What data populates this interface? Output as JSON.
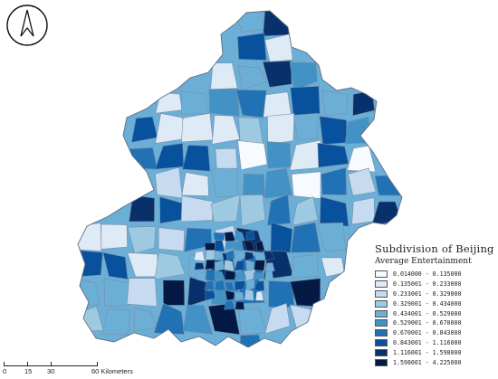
{
  "north_arrow": {
    "icon": "north-arrow-icon"
  },
  "legend": {
    "title": "Subdivision of Beijing",
    "subtitle": "Average Entertainment",
    "classes": [
      {
        "label": "0.014000 - 0.135000",
        "color": "#f7fbff"
      },
      {
        "label": "0.135001 - 0.233000",
        "color": "#deebf7"
      },
      {
        "label": "0.233001 - 0.329000",
        "color": "#c6dbef"
      },
      {
        "label": "0.329001 - 0.434000",
        "color": "#9ecae1"
      },
      {
        "label": "0.434001 - 0.529000",
        "color": "#6baed6"
      },
      {
        "label": "0.529001 - 0.670000",
        "color": "#4292c6"
      },
      {
        "label": "0.670001 - 0.843000",
        "color": "#2171b5"
      },
      {
        "label": "0.843001 - 1.116000",
        "color": "#08519c"
      },
      {
        "label": "1.116001 - 1.598000",
        "color": "#08306b"
      },
      {
        "label": "1.598001 - 4.225000",
        "color": "#041a45"
      }
    ]
  },
  "scale_bar": {
    "labels": [
      "0",
      "15",
      "30",
      "60 Kilometers"
    ]
  }
}
